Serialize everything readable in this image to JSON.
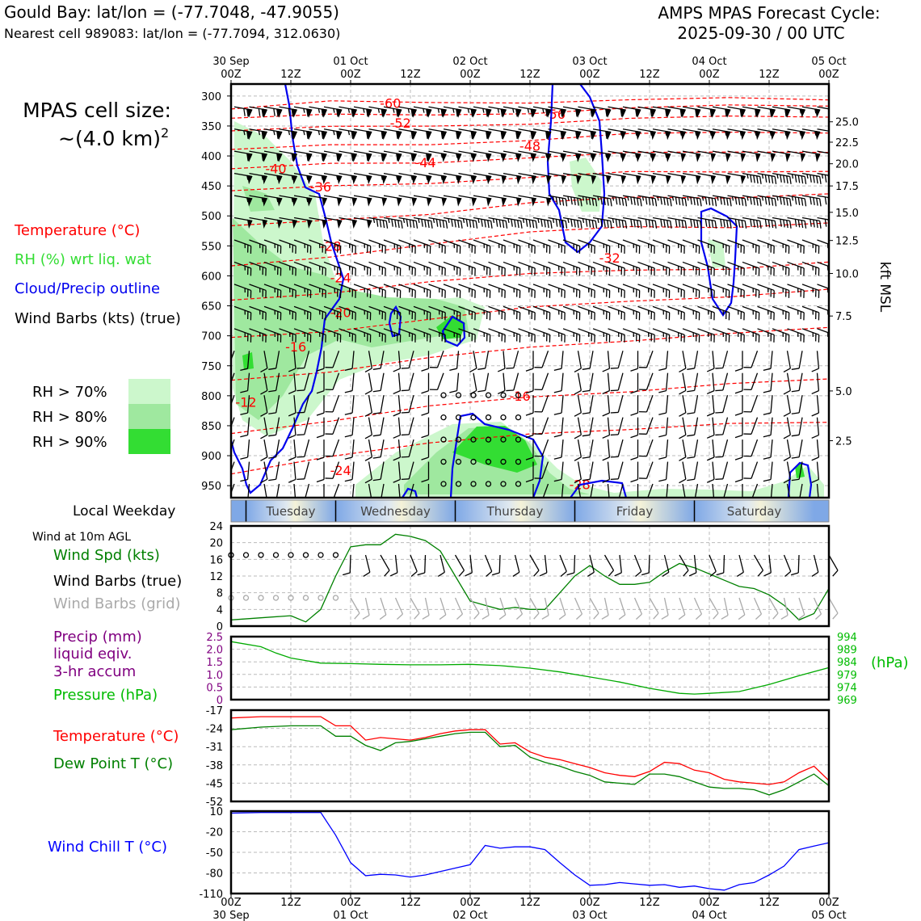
{
  "header": {
    "title": "Gould Bay: lat/lon = (-77.7048, -47.9055)",
    "subtitle": "Nearest cell 989083: lat/lon = (-77.7094, 312.0630)",
    "cycle_line1": "AMPS MPAS Forecast Cycle:",
    "cycle_line2": "2025-09-30 / 00 UTC"
  },
  "left_panel": {
    "cell_size_line1": "MPAS cell size:",
    "cell_size_line2": "~(4.0 km)",
    "cell_size_sup": "2",
    "legend_temperature": "Temperature (°C)",
    "legend_rh": "RH (%) wrt liq. wat",
    "legend_cloud": "Cloud/Precip outline",
    "legend_wind": "Wind Barbs (kts) (true)",
    "rh_70": "RH > 70%",
    "rh_80": "RH > 80%",
    "rh_90": "RH > 90%",
    "local_weekday": "Local Weekday",
    "wind_10m": "Wind at 10m AGL",
    "wind_spd": "Wind Spd (kts)",
    "wind_barbs_true": "Wind Barbs (true)",
    "wind_barbs_grid": "Wind Barbs (grid)",
    "precip_1": "Precip (mm)",
    "precip_2": "liquid eqiv.",
    "precip_3": "3-hr accum",
    "pressure": "Pressure (hPa)",
    "temp2": "Temperature (°C)",
    "dew": "Dew Point T (°C)",
    "windchill": "Wind Chill T (°C)",
    "hpa_unit": "(hPa)",
    "kft_label": "kft MSL"
  },
  "colors": {
    "temperature": "#ff0000",
    "rh": "#22cc22",
    "rh70": "#ccf7cc",
    "rh80": "#9fe89f",
    "rh90": "#33dd33",
    "cloud": "#0000ee",
    "pressure": "#00aa00",
    "dew": "#008000",
    "precip": "#800080",
    "windchill": "#0000ff",
    "grid_barbs": "#aaaaaa"
  },
  "time_axis": {
    "top_major": [
      [
        "30 Sep",
        "00Z"
      ],
      [
        "",
        "12Z"
      ],
      [
        "01 Oct",
        "00Z"
      ],
      [
        "",
        "12Z"
      ],
      [
        "02 Oct",
        "00Z"
      ],
      [
        "",
        "12Z"
      ],
      [
        "03 Oct",
        "00Z"
      ],
      [
        "",
        "12Z"
      ],
      [
        "04 Oct",
        "00Z"
      ],
      [
        "",
        "12Z"
      ],
      [
        "05 Oct",
        "00Z"
      ]
    ],
    "bottom_hours": [
      "00Z",
      "12Z",
      "00Z",
      "12Z",
      "00Z",
      "12Z",
      "00Z",
      "12Z",
      "00Z",
      "12Z",
      "00Z"
    ],
    "bottom_dates": [
      "30 Sep",
      "",
      "01 Oct",
      "",
      "02 Oct",
      "",
      "03 Oct",
      "",
      "04 Oct",
      "",
      "05 Oct"
    ],
    "weekdays": [
      "Tuesday",
      "Wednesday",
      "Thursday",
      "Friday",
      "Saturday"
    ]
  },
  "chart_data": [
    {
      "type": "line",
      "name": "time-height cross section",
      "pressure_levels_hpa": [
        "300",
        "350",
        "400",
        "450",
        "500",
        "550",
        "600",
        "650",
        "700",
        "750",
        "800",
        "850",
        "900",
        "950"
      ],
      "kft_ticks": [
        "25.0",
        "22.5",
        "20.0",
        "17.5",
        "15.0",
        "12.5",
        "10.0",
        "7.5",
        "5.0",
        "2.5"
      ],
      "kft_ticks_p": [
        343,
        377,
        413,
        450,
        494,
        541,
        596,
        667,
        792,
        875
      ],
      "temperature_labels": [
        {
          "t": -60,
          "h": 32,
          "p": 312
        },
        {
          "t": -52,
          "h": 34,
          "p": 345
        },
        {
          "t": -56,
          "h": 65,
          "p": 330
        },
        {
          "t": -48,
          "h": 60,
          "p": 383
        },
        {
          "t": -44,
          "h": 39,
          "p": 411
        },
        {
          "t": -40,
          "h": 9,
          "p": 421
        },
        {
          "t": -36,
          "h": 18,
          "p": 451
        },
        {
          "t": -28,
          "h": 20,
          "p": 550
        },
        {
          "t": -32,
          "h": 76,
          "p": 570
        },
        {
          "t": -24,
          "h": 22,
          "p": 603
        },
        {
          "t": -20,
          "h": 22,
          "p": 661
        },
        {
          "t": -16,
          "h": 13,
          "p": 718
        },
        {
          "t": -12,
          "h": 3,
          "p": 810
        },
        {
          "t": -16,
          "h": 58,
          "p": 800
        },
        {
          "t": -24,
          "h": 22,
          "p": 924
        },
        {
          "t": -28,
          "h": 70,
          "p": 948
        }
      ],
      "temp_contours": [
        {
          "p": [
            322,
            312,
            310,
            308,
            308,
            306,
            304
          ]
        },
        {
          "p": [
            338,
            334,
            330,
            326,
            322,
            318,
            314
          ]
        },
        {
          "p": [
            360,
            354,
            348,
            344,
            340,
            336,
            332
          ]
        },
        {
          "p": [
            392,
            384,
            378,
            372,
            366,
            362,
            358
          ]
        },
        {
          "p": [
            425,
            414,
            408,
            402,
            398,
            394,
            390
          ]
        },
        {
          "p": [
            462,
            450,
            442,
            436,
            430,
            426,
            422
          ]
        },
        {
          "p": [
            520,
            505,
            494,
            480,
            472,
            468,
            460
          ]
        },
        {
          "p": [
            585,
            565,
            545,
            530,
            520,
            516,
            510
          ]
        },
        {
          "p": [
            640,
            625,
            610,
            600,
            590,
            585,
            578
          ]
        },
        {
          "p": [
            700,
            690,
            675,
            655,
            640,
            632,
            625
          ]
        },
        {
          "p": [
            770,
            760,
            740,
            720,
            705,
            695,
            690
          ]
        },
        {
          "p": [
            860,
            845,
            820,
            800,
            790,
            782,
            775
          ]
        },
        {
          "p": [
            930,
            905,
            880,
            860,
            855,
            850,
            845
          ]
        }
      ]
    },
    {
      "type": "line",
      "name": "wind speed",
      "ylim": [
        0,
        24
      ],
      "yticks": [
        "0",
        "4",
        "8",
        "12",
        "16",
        "20",
        "24"
      ],
      "x_hours": [
        0,
        6,
        12,
        15,
        18,
        21,
        24,
        27,
        30,
        33,
        36,
        39,
        42,
        45,
        48,
        51,
        54,
        57,
        60,
        63,
        66,
        69,
        72,
        75,
        78,
        81,
        84,
        87,
        90,
        93,
        96,
        99,
        102,
        105,
        108,
        111,
        114,
        117,
        120
      ],
      "values": [
        1.5,
        2,
        2.5,
        1,
        4,
        12,
        19,
        19.5,
        19.5,
        22,
        21.5,
        20.5,
        18,
        12,
        6,
        5,
        4,
        4.5,
        4,
        4,
        8,
        12,
        14.5,
        12,
        10,
        10,
        10.5,
        13,
        15,
        14,
        12.5,
        11,
        9.5,
        9,
        7.5,
        5,
        1.5,
        3,
        9
      ]
    },
    {
      "type": "line",
      "name": "pressure",
      "precip_yticks": [
        "0",
        "0.5",
        "1.0",
        "1.5",
        "2.0",
        "2.5"
      ],
      "pressure_yticks": [
        "969",
        "974",
        "979",
        "984",
        "989",
        "994"
      ],
      "ylim": [
        969,
        994
      ],
      "x_hours": [
        0,
        6,
        9,
        12,
        18,
        24,
        30,
        36,
        42,
        48,
        54,
        60,
        66,
        72,
        78,
        84,
        90,
        93,
        96,
        102,
        108,
        114,
        120
      ],
      "values": [
        992,
        990,
        987.5,
        985.5,
        983.5,
        983.3,
        983,
        982.8,
        982.8,
        983,
        982.5,
        981.5,
        980,
        978,
        976,
        973.5,
        971.5,
        971.2,
        971.5,
        972.2,
        975,
        978.5,
        981.7
      ]
    },
    {
      "type": "line",
      "name": "temperature and dew point",
      "ylim": [
        -52,
        -17
      ],
      "yticks": [
        "-17",
        "-24",
        "-31",
        "-38",
        "-45",
        "-52"
      ],
      "x_hours": [
        0,
        6,
        12,
        18,
        21,
        24,
        27,
        30,
        33,
        36,
        39,
        42,
        45,
        48,
        51,
        54,
        57,
        60,
        63,
        66,
        69,
        72,
        75,
        78,
        81,
        84,
        87,
        90,
        93,
        96,
        99,
        102,
        105,
        108,
        111,
        114,
        117,
        120
      ],
      "series": [
        {
          "name": "Temperature",
          "values": [
            -20,
            -19.5,
            -19.5,
            -19.5,
            -23,
            -23,
            -28.5,
            -27.5,
            -28,
            -28.5,
            -27.5,
            -26,
            -25,
            -24.5,
            -24.5,
            -30,
            -29.5,
            -33,
            -35,
            -36,
            -37.5,
            -39,
            -41,
            -42,
            -42.5,
            -40.5,
            -37,
            -37.5,
            -40,
            -41,
            -43.5,
            -44.5,
            -45,
            -45.5,
            -44.5,
            -41,
            -38.5,
            -44
          ]
        },
        {
          "name": "Dew Point",
          "values": [
            -24.5,
            -23.5,
            -23,
            -23,
            -27,
            -27,
            -30.5,
            -32.5,
            -29.5,
            -29,
            -28,
            -27,
            -26,
            -25.5,
            -25.5,
            -31,
            -30.5,
            -35,
            -37,
            -38.5,
            -40.5,
            -42,
            -44.5,
            -45,
            -45.5,
            -41.5,
            -41.5,
            -42.5,
            -44.5,
            -46.5,
            -47,
            -47,
            -47.5,
            -49.5,
            -47.5,
            -44.5,
            -41.5,
            -46
          ]
        }
      ]
    },
    {
      "type": "line",
      "name": "wind chill",
      "ylim": [
        -110,
        10
      ],
      "yticks": [
        "10",
        "-20",
        "-50",
        "-80",
        "-110"
      ],
      "x_hours": [
        0,
        6,
        12,
        18,
        21,
        24,
        27,
        30,
        33,
        36,
        39,
        42,
        45,
        48,
        51,
        54,
        57,
        60,
        63,
        66,
        69,
        72,
        75,
        78,
        81,
        84,
        87,
        90,
        93,
        96,
        99,
        102,
        105,
        108,
        111,
        114,
        117,
        120
      ],
      "values": [
        7,
        8,
        8,
        8,
        -25,
        -65,
        -84,
        -82,
        -83,
        -86,
        -83,
        -78,
        -73,
        -68,
        -40,
        -44,
        -42,
        -42,
        -46,
        -65,
        -83,
        -98,
        -97,
        -94,
        -96,
        -98,
        -97,
        -101,
        -99,
        -103,
        -105,
        -97,
        -94,
        -83,
        -70,
        -46,
        -41,
        -36
      ]
    }
  ]
}
